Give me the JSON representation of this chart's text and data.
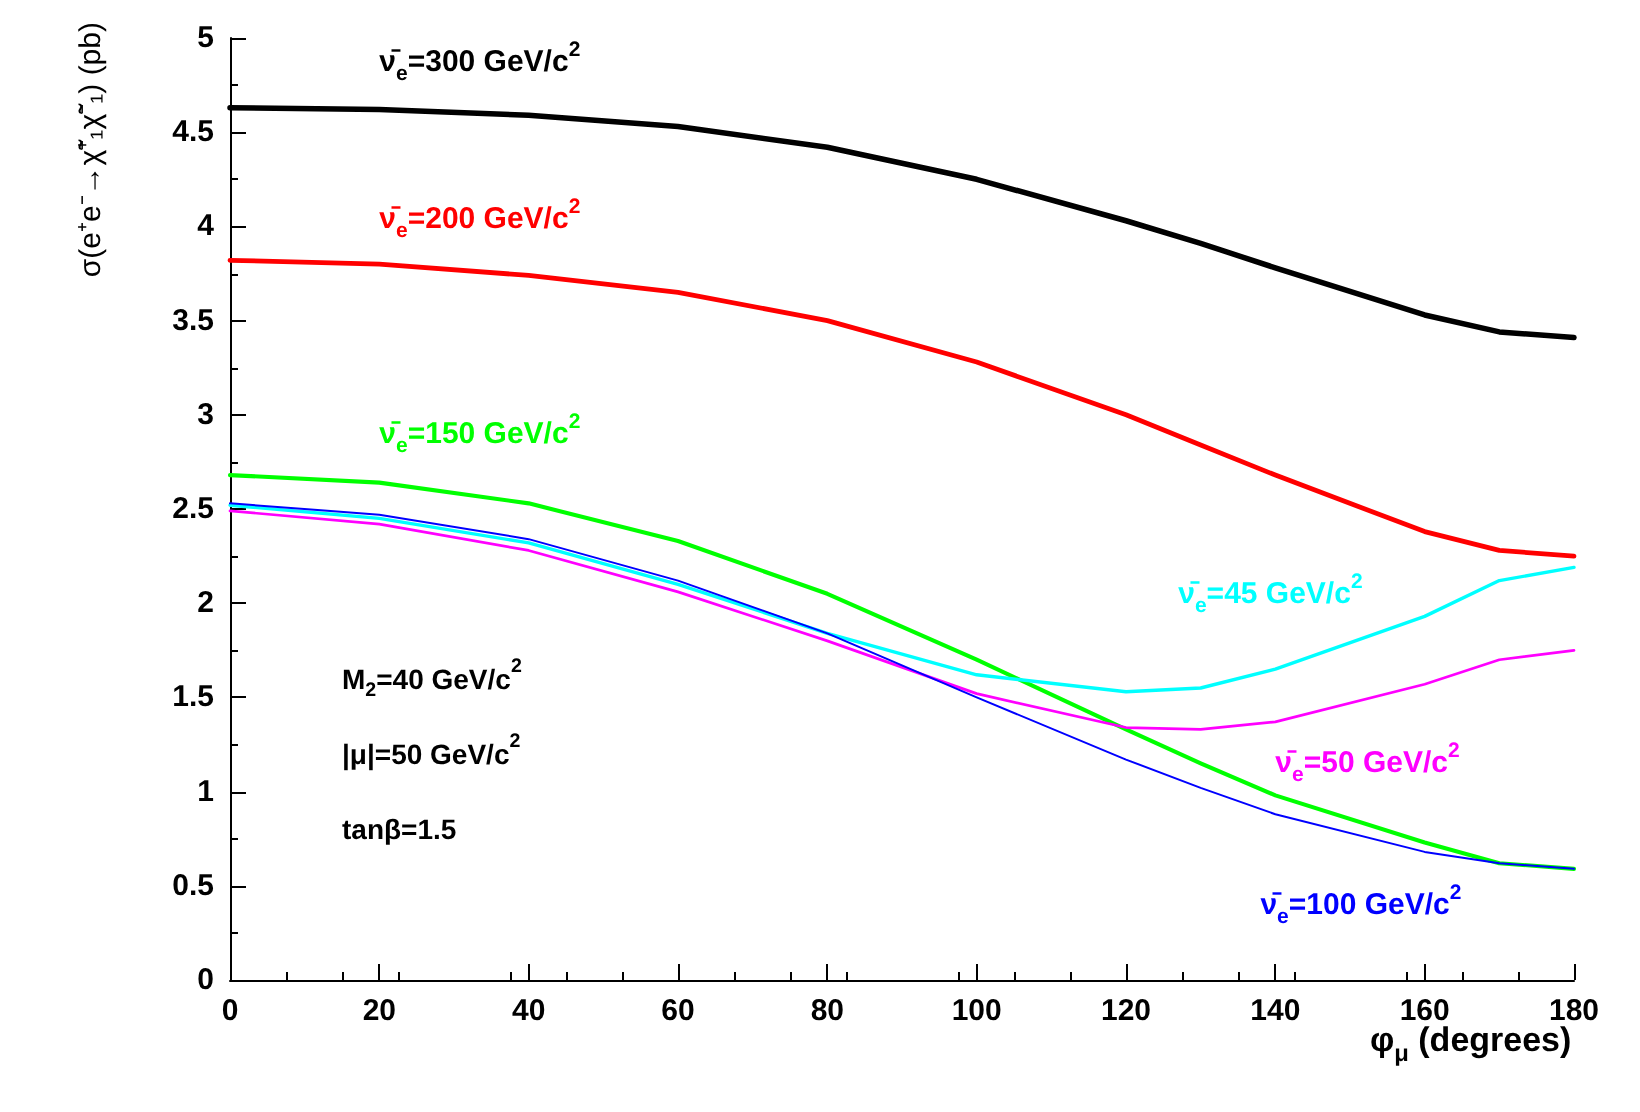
{
  "chart_data": {
    "type": "line",
    "xlabel": "φ$_{μ}$ (degrees)",
    "ylabel": "σ(e⁺e⁻→χ̃⁺₁χ̃⁻₁) (pb)",
    "xlim": [
      0,
      180
    ],
    "xticks": [
      0,
      20,
      40,
      60,
      80,
      100,
      120,
      140,
      160,
      180
    ],
    "ylim": [
      0,
      5
    ],
    "yticks": [
      0,
      0.5,
      1,
      1.5,
      2,
      2.5,
      3,
      3.5,
      4,
      4.5,
      5
    ],
    "grid": false,
    "marker": "none",
    "line_style": "solid",
    "x": [
      0,
      20,
      40,
      60,
      80,
      100,
      120,
      130,
      140,
      160,
      170,
      180
    ],
    "series": [
      {
        "name": "ν̄$_{e}$=300 GeV/c$^{2}$",
        "color": "#000000",
        "values": [
          4.63,
          4.62,
          4.59,
          4.53,
          4.42,
          4.25,
          4.03,
          3.91,
          3.78,
          3.53,
          3.44,
          3.41
        ]
      },
      {
        "name": "ν̄$_{e}$=200 GeV/c$^{2}$",
        "color": "#ff0000",
        "values": [
          3.82,
          3.8,
          3.74,
          3.65,
          3.5,
          3.28,
          3.0,
          2.84,
          2.68,
          2.38,
          2.28,
          2.25
        ]
      },
      {
        "name": "ν̄$_{e}$=150 GeV/c$^{2}$",
        "color": "#00ff00",
        "values": [
          2.68,
          2.64,
          2.53,
          2.33,
          2.05,
          1.7,
          1.33,
          1.15,
          0.98,
          0.73,
          0.62,
          0.59
        ]
      },
      {
        "name": "ν̄$_{e}$=45 GeV/c$^{2}$",
        "color": "#00ffff",
        "values": [
          2.52,
          2.45,
          2.32,
          2.1,
          1.84,
          1.62,
          1.53,
          1.55,
          1.65,
          1.93,
          2.12,
          2.19
        ]
      },
      {
        "name": "ν̄$_{e}$=50 GeV/c$^{2}$",
        "color": "#ff00ff",
        "values": [
          2.49,
          2.42,
          2.28,
          2.06,
          1.8,
          1.52,
          1.34,
          1.33,
          1.37,
          1.57,
          1.7,
          1.75
        ]
      },
      {
        "name": "ν̄$_{e}$=100 GeV/c$^{2}$",
        "color": "#0000ff",
        "values": [
          2.53,
          2.47,
          2.34,
          2.12,
          1.84,
          1.5,
          1.17,
          1.02,
          0.88,
          0.68,
          0.62,
          0.59
        ]
      }
    ],
    "annotations": [
      "M$_{2}$=40 GeV/c$^{2}$",
      "|μ|=50 GeV/c$^{2}$",
      "tanβ=1.5"
    ]
  }
}
